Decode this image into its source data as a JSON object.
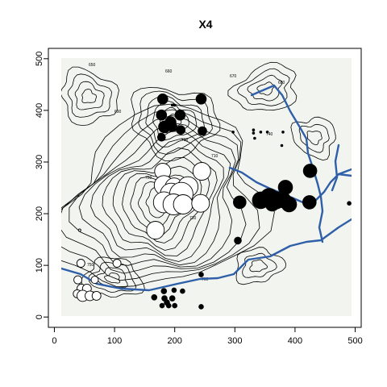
{
  "chart_data": {
    "type": "scatter",
    "title": "X4",
    "xlabel": "",
    "ylabel": "",
    "xlim": [
      -10,
      510
    ],
    "ylim": [
      -20,
      520
    ],
    "xticks": [
      0,
      100,
      200,
      300,
      400,
      500
    ],
    "yticks": [
      0,
      100,
      200,
      300,
      400,
      500
    ],
    "background": "topographic contour map with river",
    "colors": {
      "positive": "#000000",
      "negative": "#ffffff",
      "map_background": "#f2f4ef",
      "river": "#2e5fa8"
    },
    "contour_labels": [
      "650",
      "660",
      "670",
      "680",
      "690",
      "700",
      "710",
      "720",
      "730",
      "740",
      "750",
      "760"
    ],
    "points": [
      {
        "x": 180,
        "y": 422,
        "size": 6.5,
        "sign": 1
      },
      {
        "x": 244,
        "y": 422,
        "size": 6.5,
        "sign": 1
      },
      {
        "x": 196,
        "y": 410,
        "size": 1.5,
        "sign": 1
      },
      {
        "x": 178,
        "y": 391,
        "size": 6.5,
        "sign": 1
      },
      {
        "x": 209,
        "y": 391,
        "size": 6.5,
        "sign": 1
      },
      {
        "x": 193,
        "y": 377,
        "size": 7.0,
        "sign": 1
      },
      {
        "x": 183,
        "y": 368,
        "size": 7.5,
        "sign": 1
      },
      {
        "x": 196,
        "y": 368,
        "size": 6.0,
        "sign": 1
      },
      {
        "x": 210,
        "y": 362,
        "size": 5.5,
        "sign": 1
      },
      {
        "x": 246,
        "y": 360,
        "size": 5.5,
        "sign": 1
      },
      {
        "x": 178,
        "y": 348,
        "size": 5.0,
        "sign": 1
      },
      {
        "x": 176,
        "y": 354,
        "size": 1.5,
        "sign": 1
      },
      {
        "x": 297,
        "y": 358,
        "size": 1.5,
        "sign": 1
      },
      {
        "x": 331,
        "y": 362,
        "size": 1.5,
        "sign": 1
      },
      {
        "x": 331,
        "y": 356,
        "size": 1.5,
        "sign": 1
      },
      {
        "x": 343,
        "y": 358,
        "size": 1.5,
        "sign": 1
      },
      {
        "x": 354,
        "y": 358,
        "size": 1.5,
        "sign": 1
      },
      {
        "x": 380,
        "y": 358,
        "size": 1.5,
        "sign": 1
      },
      {
        "x": 378,
        "y": 332,
        "size": 1.5,
        "sign": 1
      },
      {
        "x": 333,
        "y": 346,
        "size": 1.5,
        "sign": 1
      },
      {
        "x": 180,
        "y": 282,
        "size": 10.0,
        "sign": -1
      },
      {
        "x": 245,
        "y": 282,
        "size": 11.0,
        "sign": -1
      },
      {
        "x": 182,
        "y": 255,
        "size": 12.0,
        "sign": -1
      },
      {
        "x": 199,
        "y": 252,
        "size": 11.0,
        "sign": -1
      },
      {
        "x": 222,
        "y": 252,
        "size": 12.5,
        "sign": -1
      },
      {
        "x": 194,
        "y": 238,
        "size": 13.5,
        "sign": -1
      },
      {
        "x": 211,
        "y": 238,
        "size": 14.5,
        "sign": -1
      },
      {
        "x": 182,
        "y": 222,
        "size": 13.0,
        "sign": -1
      },
      {
        "x": 198,
        "y": 218,
        "size": 13.0,
        "sign": -1
      },
      {
        "x": 214,
        "y": 218,
        "size": 12.0,
        "sign": -1
      },
      {
        "x": 243,
        "y": 220,
        "size": 11.0,
        "sign": -1
      },
      {
        "x": 168,
        "y": 168,
        "size": 11.0,
        "sign": -1
      },
      {
        "x": 308,
        "y": 222,
        "size": 8.0,
        "sign": 1
      },
      {
        "x": 384,
        "y": 251,
        "size": 9.0,
        "sign": 1
      },
      {
        "x": 357,
        "y": 232,
        "size": 11.0,
        "sign": 1
      },
      {
        "x": 343,
        "y": 226,
        "size": 10.5,
        "sign": 1
      },
      {
        "x": 368,
        "y": 226,
        "size": 11.0,
        "sign": 1
      },
      {
        "x": 381,
        "y": 226,
        "size": 9.5,
        "sign": 1
      },
      {
        "x": 362,
        "y": 218,
        "size": 8.5,
        "sign": 1
      },
      {
        "x": 390,
        "y": 218,
        "size": 9.5,
        "sign": 1
      },
      {
        "x": 424,
        "y": 222,
        "size": 8.5,
        "sign": 1
      },
      {
        "x": 425,
        "y": 283,
        "size": 8.5,
        "sign": 1
      },
      {
        "x": 421,
        "y": 274,
        "size": 1.5,
        "sign": 1
      },
      {
        "x": 305,
        "y": 148,
        "size": 4.5,
        "sign": 1
      },
      {
        "x": 490,
        "y": 220,
        "size": 2.5,
        "sign": 1
      },
      {
        "x": 44,
        "y": 104,
        "size": 5.0,
        "sign": -1
      },
      {
        "x": 104,
        "y": 104,
        "size": 5.0,
        "sign": -1
      },
      {
        "x": 39,
        "y": 72,
        "size": 5.0,
        "sign": -1
      },
      {
        "x": 67,
        "y": 72,
        "size": 4.5,
        "sign": -1
      },
      {
        "x": 45,
        "y": 55,
        "size": 5.5,
        "sign": -1
      },
      {
        "x": 54,
        "y": 55,
        "size": 5.5,
        "sign": -1
      },
      {
        "x": 38,
        "y": 45,
        "size": 5.0,
        "sign": -1
      },
      {
        "x": 47,
        "y": 41,
        "size": 7.0,
        "sign": -1
      },
      {
        "x": 59,
        "y": 41,
        "size": 6.0,
        "sign": -1
      },
      {
        "x": 70,
        "y": 41,
        "size": 5.5,
        "sign": -1
      },
      {
        "x": 244,
        "y": 82,
        "size": 3.0,
        "sign": 1
      },
      {
        "x": 182,
        "y": 50,
        "size": 3.5,
        "sign": 1
      },
      {
        "x": 199,
        "y": 52,
        "size": 3.0,
        "sign": 1
      },
      {
        "x": 213,
        "y": 50,
        "size": 3.0,
        "sign": 1
      },
      {
        "x": 166,
        "y": 38,
        "size": 3.5,
        "sign": 1
      },
      {
        "x": 183,
        "y": 36,
        "size": 3.5,
        "sign": 1
      },
      {
        "x": 196,
        "y": 36,
        "size": 3.5,
        "sign": 1
      },
      {
        "x": 187,
        "y": 28,
        "size": 3.5,
        "sign": 1
      },
      {
        "x": 179,
        "y": 22,
        "size": 3.0,
        "sign": 1
      },
      {
        "x": 190,
        "y": 22,
        "size": 3.0,
        "sign": 1
      },
      {
        "x": 200,
        "y": 22,
        "size": 3.0,
        "sign": 1
      },
      {
        "x": 244,
        "y": 20,
        "size": 3.0,
        "sign": 1
      },
      {
        "x": 200,
        "y": 410,
        "size": 1.5,
        "sign": 1
      },
      {
        "x": 42,
        "y": 168,
        "size": 1.5,
        "sign": -1
      }
    ]
  }
}
